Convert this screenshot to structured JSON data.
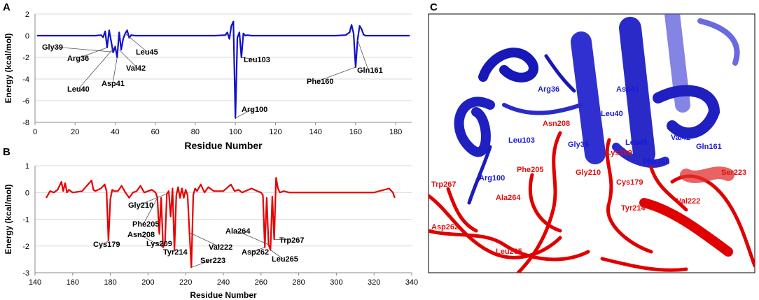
{
  "panels": {
    "A": "A",
    "B": "B",
    "C": "C"
  },
  "colors": {
    "blue": "#1010c8",
    "red": "#e80000",
    "grid": "#d9d9d9"
  },
  "chart_data": [
    {
      "type": "line",
      "panel": "A",
      "xlabel": "Residue Number",
      "ylabel": "Energy (kcal/mol)",
      "xlim": [
        0,
        188
      ],
      "ylim": [
        -8,
        2
      ],
      "xticks": [
        0,
        20,
        40,
        60,
        80,
        100,
        120,
        140,
        160,
        180
      ],
      "yticks": [
        2,
        0,
        -2,
        -4,
        -6,
        -8
      ],
      "grid": "horizontal",
      "color": "#1010c8",
      "x": [
        1,
        10,
        20,
        30,
        33,
        34,
        35,
        36,
        37,
        38,
        39,
        40,
        41,
        42,
        43,
        44,
        45,
        46,
        47,
        48,
        50,
        55,
        60,
        70,
        80,
        90,
        95,
        96,
        97,
        98,
        99,
        100,
        101,
        102,
        103,
        104,
        105,
        106,
        108,
        110,
        120,
        130,
        140,
        150,
        155,
        157,
        158,
        159,
        160,
        161,
        162,
        163,
        164,
        165,
        170,
        180,
        187
      ],
      "y": [
        0,
        0,
        0,
        0,
        0.05,
        -0.15,
        0.4,
        -1.1,
        0.5,
        -0.5,
        -1.55,
        -1.0,
        -2.0,
        0.3,
        -1.3,
        -0.3,
        0.2,
        0.5,
        -0.2,
        0.05,
        0,
        0,
        0,
        0,
        0,
        0,
        0.05,
        0.3,
        -0.3,
        0.9,
        1.3,
        -7.6,
        -0.2,
        0.3,
        -2.0,
        0.2,
        0,
        0.05,
        0,
        0,
        0,
        0,
        0,
        0,
        0.05,
        0.3,
        1.0,
        0.2,
        -2.9,
        -0.4,
        0.9,
        0.6,
        0.1,
        0,
        0,
        0,
        0
      ],
      "annotations": [
        {
          "text": "Gly39",
          "x": 39,
          "y": -1.5
        },
        {
          "text": "Arg36",
          "x": 36,
          "y": -1.1
        },
        {
          "text": "Leu45",
          "x": 45,
          "y": 0.2
        },
        {
          "text": "Val42",
          "x": 42,
          "y": -1.3
        },
        {
          "text": "Leu40",
          "x": 40,
          "y": -1.0
        },
        {
          "text": "Asp41",
          "x": 41,
          "y": -2.0
        },
        {
          "text": "Leu103",
          "x": 103,
          "y": -2.0
        },
        {
          "text": "Arg100",
          "x": 100,
          "y": -7.6
        },
        {
          "text": "Gln161",
          "x": 161,
          "y": -0.4
        },
        {
          "text": "Phe160",
          "x": 160,
          "y": -2.9
        }
      ]
    },
    {
      "type": "line",
      "panel": "B",
      "xlabel": "Residue Number",
      "ylabel": "Energy (kcal/mol)",
      "xlim": [
        140,
        340
      ],
      "ylim": [
        -3,
        1
      ],
      "xticks": [
        140,
        160,
        180,
        200,
        220,
        240,
        260,
        280,
        300,
        320,
        340
      ],
      "yticks": [
        1,
        0,
        -1,
        -2,
        -3
      ],
      "grid": "horizontal",
      "color": "#e80000",
      "x": [
        146,
        148,
        150,
        152,
        154,
        155,
        156,
        157,
        158,
        160,
        165,
        170,
        171,
        172,
        175,
        177,
        178,
        179,
        180,
        181,
        182,
        184,
        186,
        188,
        190,
        192,
        194,
        196,
        198,
        200,
        202,
        204,
        205,
        206,
        207,
        208,
        209,
        210,
        211,
        212,
        213,
        214,
        215,
        216,
        217,
        218,
        219,
        220,
        221,
        222,
        223,
        224,
        225,
        226,
        228,
        230,
        232,
        235,
        240,
        244,
        246,
        248,
        250,
        255,
        258,
        260,
        261,
        262,
        263,
        264,
        265,
        266,
        267,
        268,
        269,
        270,
        272,
        275,
        280,
        290,
        300,
        310,
        320,
        328,
        330,
        331
      ],
      "y": [
        -0.2,
        0.05,
        0,
        0.1,
        0.4,
        0.05,
        0.35,
        0,
        0.1,
        0,
        0.05,
        0.45,
        0.1,
        0.05,
        0.15,
        0.3,
        0.05,
        -1.8,
        -0.25,
        0.1,
        0.05,
        0.05,
        0.25,
        0,
        -0.2,
        0,
        0.05,
        0.25,
        0,
        0.05,
        0.1,
        0,
        -0.2,
        -1.55,
        -0.2,
        -2.05,
        -1.9,
        -0.05,
        0.05,
        -0.9,
        0.15,
        -2.15,
        -0.1,
        0.2,
        -0.2,
        0.15,
        -0.2,
        0.1,
        -0.1,
        -1.5,
        -2.8,
        -0.1,
        0.15,
        0.05,
        0.3,
        0,
        0.2,
        0.05,
        0.05,
        0.3,
        0.05,
        0.1,
        0,
        0.15,
        0.05,
        0,
        -0.1,
        -2.05,
        -0.2,
        -1.95,
        -2.15,
        -0.15,
        -1.75,
        0.55,
        0.15,
        0,
        0.05,
        0,
        0,
        0,
        0,
        0,
        0,
        0.15,
        0,
        -0.2
      ],
      "annotations": [
        {
          "text": "Cys179",
          "x": 179,
          "y": -1.8
        },
        {
          "text": "Gly210",
          "x": 210,
          "y": -0.05
        },
        {
          "text": "Phe205",
          "x": 205,
          "y": -0.2
        },
        {
          "text": "Asn208",
          "x": 208,
          "y": -2.05
        },
        {
          "text": "Lys209",
          "x": 209,
          "y": -1.9
        },
        {
          "text": "Tyr214",
          "x": 214,
          "y": -2.15
        },
        {
          "text": "Val222",
          "x": 222,
          "y": -1.5
        },
        {
          "text": "Ser223",
          "x": 223,
          "y": -2.8
        },
        {
          "text": "Ala264",
          "x": 264,
          "y": -1.95
        },
        {
          "text": "Trp267",
          "x": 267,
          "y": -1.75
        },
        {
          "text": "Asp262",
          "x": 262,
          "y": -2.05
        },
        {
          "text": "Leu265",
          "x": 265,
          "y": -2.15
        }
      ]
    }
  ],
  "structure_labels": {
    "blue": [
      "Arg36",
      "Asp41",
      "Leu40",
      "Asn208",
      "Gly39",
      "Leu45",
      "Val42",
      "Gln161",
      "Phe160",
      "Leu103",
      "Arg100"
    ],
    "red": [
      "Lys209",
      "Gly210",
      "Phe205",
      "Ser223",
      "Cys179",
      "Trp267",
      "Ala264",
      "Tyr214",
      "Val222",
      "Asp262",
      "Leu265"
    ]
  }
}
